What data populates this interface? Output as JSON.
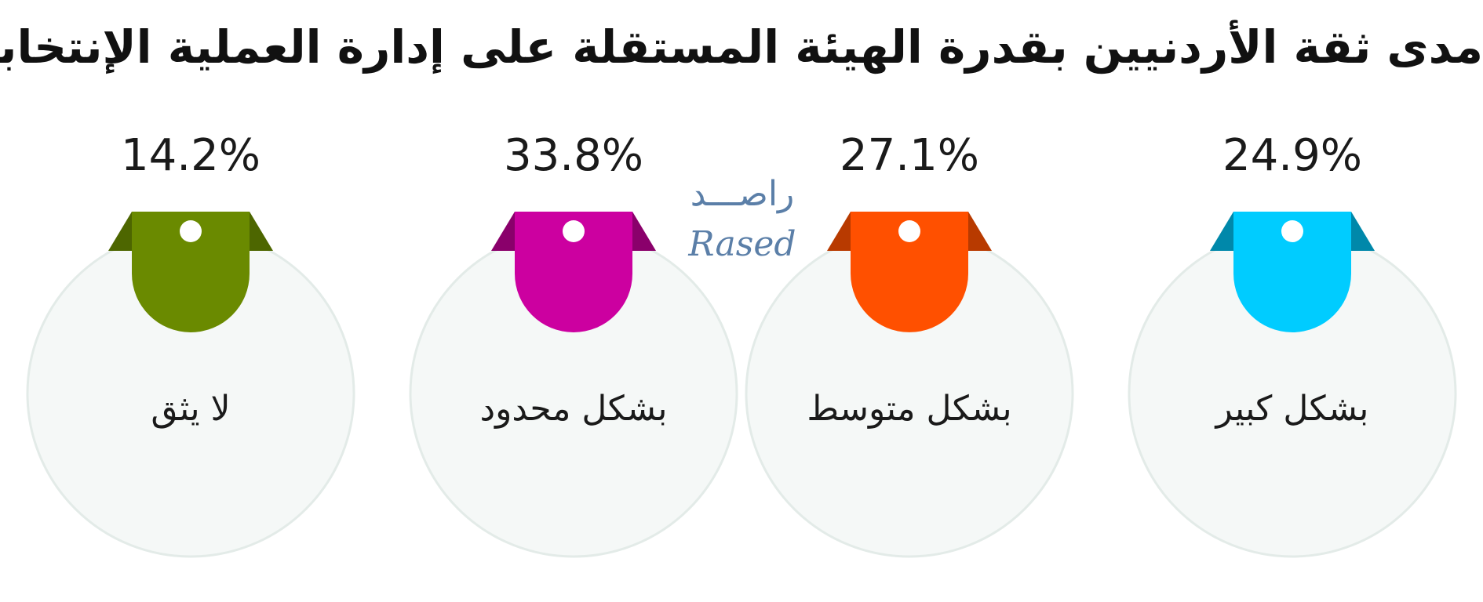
{
  "title": "مدى ثقة الأردنيين بقدرة الهيئة المستقلة على إدارة العملية الإنتخابية",
  "logo": {
    "arabic": "راصـــد",
    "latin": "Rased"
  },
  "chart_data": {
    "type": "bar",
    "title": "مدى ثقة الأردنيين بقدرة الهيئة المستقلة على إدارة العملية الإنتخابية",
    "categories": [
      "لا يثق",
      "بشكل محدود",
      "بشكل متوسط",
      "بشكل كبير"
    ],
    "values": [
      14.2,
      33.8,
      27.1,
      24.9
    ],
    "value_labels": [
      "14.2%",
      "33.8%",
      "27.1%",
      "24.9%"
    ],
    "unit": "%",
    "colors": [
      "#6a8a00",
      "#cc00a0",
      "#ff5000",
      "#00ccff"
    ],
    "dark_colors": [
      "#4d6600",
      "#8a006b",
      "#b83a00",
      "#0088aa"
    ]
  }
}
